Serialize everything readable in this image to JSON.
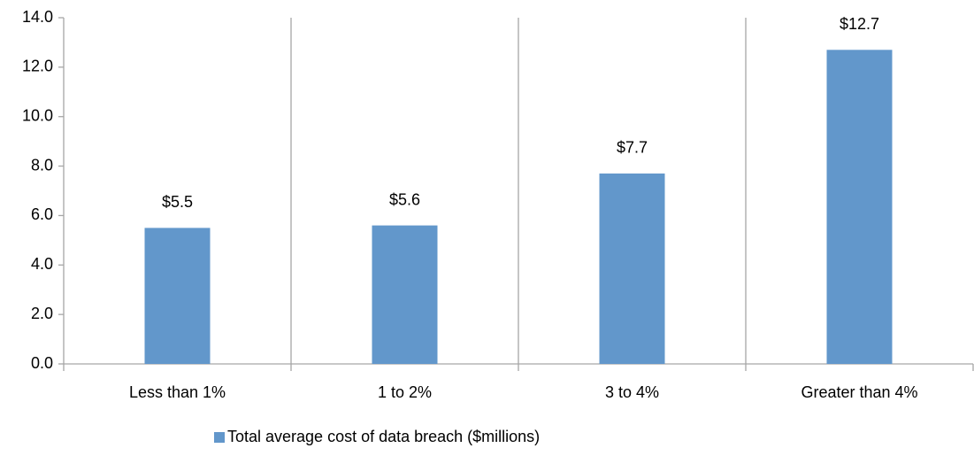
{
  "chart_data": {
    "type": "bar",
    "categories": [
      "Less than 1%",
      "1 to 2%",
      "3 to 4%",
      "Greater than 4%"
    ],
    "series": [
      {
        "name": "Total average cost of data breach ($millions)",
        "color": "#6297cb",
        "values": [
          5.5,
          5.6,
          7.7,
          12.7
        ],
        "value_labels": [
          "$5.5",
          "$5.6",
          "$7.7",
          "$12.7"
        ]
      }
    ],
    "ylim": [
      0,
      14
    ],
    "yticks": [
      {
        "value": 0,
        "label": "0.0"
      },
      {
        "value": 2,
        "label": "2.0"
      },
      {
        "value": 4,
        "label": "4.0"
      },
      {
        "value": 6,
        "label": "6.0"
      },
      {
        "value": 8,
        "label": "8.0"
      },
      {
        "value": 10,
        "label": "10.0"
      },
      {
        "value": 12,
        "label": "12.0"
      },
      {
        "value": 14,
        "label": "14.0"
      }
    ],
    "legend": "bottom"
  }
}
